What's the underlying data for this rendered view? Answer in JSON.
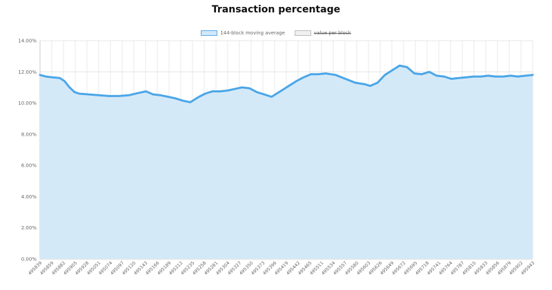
{
  "chart_data": {
    "type": "area",
    "title": "Transaction percentage",
    "xlabel": "",
    "ylabel": "",
    "ylim": [
      0,
      14
    ],
    "y_unit": "%",
    "y_ticks": [
      "0.00%",
      "2.00%",
      "4.00%",
      "6.00%",
      "8.00%",
      "10.00%",
      "12.00%",
      "14.00%"
    ],
    "y_tick_values": [
      0,
      2,
      4,
      6,
      8,
      10,
      12,
      14
    ],
    "xlim": [
      495839,
      495943
    ],
    "x_ticks": [
      "495839",
      "495859",
      "495882",
      "495905",
      "495928",
      "495051",
      "495074",
      "495097",
      "495120",
      "495143",
      "495166",
      "495189",
      "495212",
      "495235",
      "495258",
      "495281",
      "495304",
      "495327",
      "495350",
      "495373",
      "495396",
      "495419",
      "495442",
      "495465",
      "495511",
      "495534",
      "495557",
      "495580",
      "495603",
      "495626",
      "495649",
      "495672",
      "495695",
      "495718",
      "495741",
      "495764",
      "495787",
      "495810",
      "495833",
      "495856",
      "495879",
      "495902",
      "495943"
    ],
    "grid": true,
    "legend_position": "top",
    "legend": [
      {
        "label": "144-block moving average",
        "color": "#55aaee",
        "fill": "#d2e8f8",
        "visible": true
      },
      {
        "label": "value per block",
        "color": "#bbbbbb",
        "fill": "#f0f0f0",
        "visible": false
      }
    ],
    "series": [
      {
        "name": "144-block moving average",
        "color": "#4ba6e8",
        "fill": "#d4e9f8",
        "x_fraction": [
          0.0,
          0.012,
          0.025,
          0.04,
          0.05,
          0.06,
          0.07,
          0.08,
          0.1,
          0.12,
          0.14,
          0.16,
          0.18,
          0.2,
          0.215,
          0.23,
          0.245,
          0.26,
          0.275,
          0.29,
          0.305,
          0.32,
          0.335,
          0.35,
          0.365,
          0.38,
          0.395,
          0.41,
          0.425,
          0.44,
          0.455,
          0.47,
          0.49,
          0.505,
          0.52,
          0.535,
          0.55,
          0.565,
          0.58,
          0.6,
          0.62,
          0.64,
          0.66,
          0.67,
          0.685,
          0.7,
          0.715,
          0.73,
          0.745,
          0.76,
          0.775,
          0.79,
          0.805,
          0.82,
          0.835,
          0.85,
          0.865,
          0.88,
          0.895,
          0.91,
          0.925,
          0.94,
          0.955,
          0.97,
          0.985,
          1.0
        ],
        "values": [
          11.8,
          11.7,
          11.65,
          11.6,
          11.4,
          11.0,
          10.7,
          10.6,
          10.55,
          10.5,
          10.45,
          10.45,
          10.5,
          10.65,
          10.75,
          10.55,
          10.5,
          10.4,
          10.3,
          10.15,
          10.05,
          10.35,
          10.6,
          10.75,
          10.75,
          10.8,
          10.9,
          11.0,
          10.95,
          10.7,
          10.55,
          10.4,
          10.8,
          11.1,
          11.4,
          11.65,
          11.85,
          11.85,
          11.9,
          11.8,
          11.55,
          11.3,
          11.2,
          11.1,
          11.3,
          11.8,
          12.1,
          12.4,
          12.3,
          11.9,
          11.85,
          12.0,
          11.75,
          11.7,
          11.55,
          11.6,
          11.65,
          11.7,
          11.7,
          11.75,
          11.7,
          11.7,
          11.75,
          11.7,
          11.75,
          11.8
        ]
      }
    ]
  }
}
